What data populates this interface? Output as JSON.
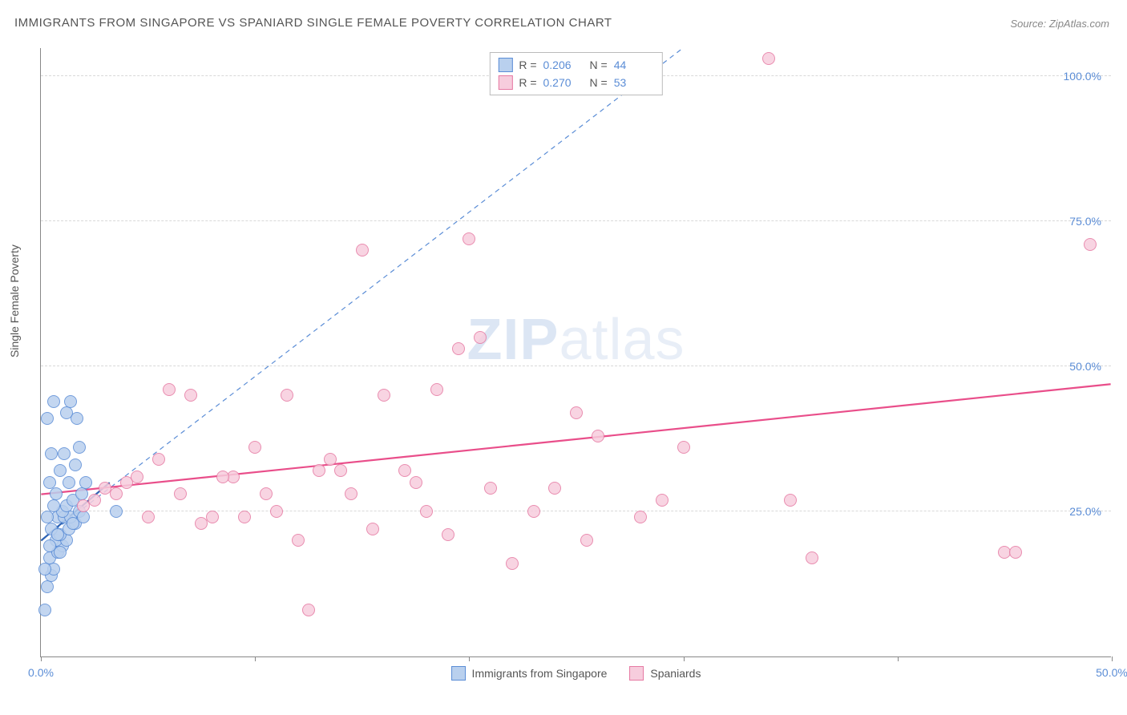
{
  "title": "IMMIGRANTS FROM SINGAPORE VS SPANIARD SINGLE FEMALE POVERTY CORRELATION CHART",
  "source": "Source: ZipAtlas.com",
  "watermark": {
    "bold": "ZIP",
    "rest": "atlas"
  },
  "ylabel": "Single Female Poverty",
  "chart": {
    "type": "scatter",
    "xlim": [
      0,
      50
    ],
    "ylim": [
      0,
      105
    ],
    "xticks": [
      0,
      10,
      20,
      30,
      40,
      50
    ],
    "xtick_labels": [
      "0.0%",
      "",
      "",
      "",
      "",
      "50.0%"
    ],
    "yticks": [
      25,
      50,
      75,
      100
    ],
    "ytick_labels": [
      "25.0%",
      "50.0%",
      "75.0%",
      "100.0%"
    ],
    "grid_color": "#d8d8d8",
    "axis_color": "#888888",
    "background": "#ffffff",
    "marker_radius": 8,
    "marker_stroke_width": 1.5,
    "marker_fill_opacity": 0.25
  },
  "series": [
    {
      "name": "Immigrants from Singapore",
      "color_stroke": "#5b8dd6",
      "color_fill": "#b9d0ee",
      "R": "0.206",
      "N": "44",
      "trend": {
        "x1": 0,
        "y1": 20,
        "x2": 30,
        "y2": 105,
        "dash": "6,5",
        "width": 1.2,
        "color": "#5b8dd6"
      },
      "trend_solid": {
        "x1": 0,
        "y1": 20,
        "x2": 3.2,
        "y2": 30,
        "width": 2.2,
        "color": "#2d62b3"
      },
      "points": [
        [
          0.2,
          8
        ],
        [
          0.3,
          12
        ],
        [
          0.5,
          14
        ],
        [
          0.6,
          15
        ],
        [
          0.4,
          17
        ],
        [
          0.8,
          18
        ],
        [
          1.0,
          19
        ],
        [
          0.7,
          20
        ],
        [
          1.2,
          20
        ],
        [
          0.9,
          21
        ],
        [
          1.3,
          22
        ],
        [
          0.5,
          22
        ],
        [
          1.6,
          23
        ],
        [
          0.8,
          24
        ],
        [
          1.1,
          24
        ],
        [
          1.4,
          24
        ],
        [
          0.3,
          24
        ],
        [
          1.8,
          25
        ],
        [
          1.0,
          25
        ],
        [
          0.6,
          26
        ],
        [
          1.2,
          26
        ],
        [
          3.5,
          25
        ],
        [
          1.5,
          27
        ],
        [
          0.7,
          28
        ],
        [
          1.9,
          28
        ],
        [
          0.4,
          30
        ],
        [
          1.3,
          30
        ],
        [
          2.1,
          30
        ],
        [
          0.9,
          32
        ],
        [
          1.6,
          33
        ],
        [
          0.5,
          35
        ],
        [
          1.1,
          35
        ],
        [
          1.8,
          36
        ],
        [
          0.3,
          41
        ],
        [
          1.7,
          41
        ],
        [
          1.2,
          42
        ],
        [
          0.6,
          44
        ],
        [
          1.4,
          44
        ],
        [
          0.2,
          15
        ],
        [
          0.4,
          19
        ],
        [
          0.8,
          21
        ],
        [
          1.5,
          23
        ],
        [
          2.0,
          24
        ],
        [
          0.9,
          18
        ]
      ]
    },
    {
      "name": "Spaniards",
      "color_stroke": "#e67aa3",
      "color_fill": "#f7cddd",
      "R": "0.270",
      "N": "53",
      "trend": {
        "x1": 0,
        "y1": 28,
        "x2": 50,
        "y2": 47,
        "dash": "none",
        "width": 2.2,
        "color": "#e94e8a"
      },
      "points": [
        [
          2.0,
          26
        ],
        [
          2.5,
          27
        ],
        [
          3.0,
          29
        ],
        [
          3.5,
          28
        ],
        [
          4.0,
          30
        ],
        [
          4.5,
          31
        ],
        [
          5.0,
          24
        ],
        [
          6.0,
          46
        ],
        [
          7.0,
          45
        ],
        [
          7.5,
          23
        ],
        [
          8.0,
          24
        ],
        [
          9.0,
          31
        ],
        [
          10.0,
          36
        ],
        [
          11.0,
          25
        ],
        [
          11.5,
          45
        ],
        [
          12.0,
          20
        ],
        [
          12.5,
          8
        ],
        [
          13.0,
          32
        ],
        [
          14.0,
          32
        ],
        [
          15.0,
          70
        ],
        [
          15.5,
          22
        ],
        [
          16.0,
          45
        ],
        [
          17.0,
          32
        ],
        [
          18.0,
          25
        ],
        [
          18.5,
          46
        ],
        [
          19.0,
          21
        ],
        [
          20.0,
          72
        ],
        [
          20.5,
          55
        ],
        [
          21.0,
          29
        ],
        [
          22.0,
          16
        ],
        [
          23.0,
          25
        ],
        [
          24.0,
          29
        ],
        [
          25.0,
          42
        ],
        [
          25.5,
          20
        ],
        [
          26.0,
          38
        ],
        [
          29.0,
          27
        ],
        [
          30.0,
          36
        ],
        [
          34.0,
          103
        ],
        [
          35.0,
          27
        ],
        [
          36.0,
          17
        ],
        [
          45.0,
          18
        ],
        [
          45.5,
          18
        ],
        [
          49.0,
          71
        ],
        [
          5.5,
          34
        ],
        [
          6.5,
          28
        ],
        [
          8.5,
          31
        ],
        [
          13.5,
          34
        ],
        [
          19.5,
          53
        ],
        [
          10.5,
          28
        ],
        [
          28.0,
          24
        ],
        [
          17.5,
          30
        ],
        [
          9.5,
          24
        ],
        [
          14.5,
          28
        ]
      ]
    }
  ],
  "legend_top": {
    "r_label": "R =",
    "n_label": "N ="
  },
  "legend_bottom": {
    "items": [
      "Immigrants from Singapore",
      "Spaniards"
    ]
  }
}
